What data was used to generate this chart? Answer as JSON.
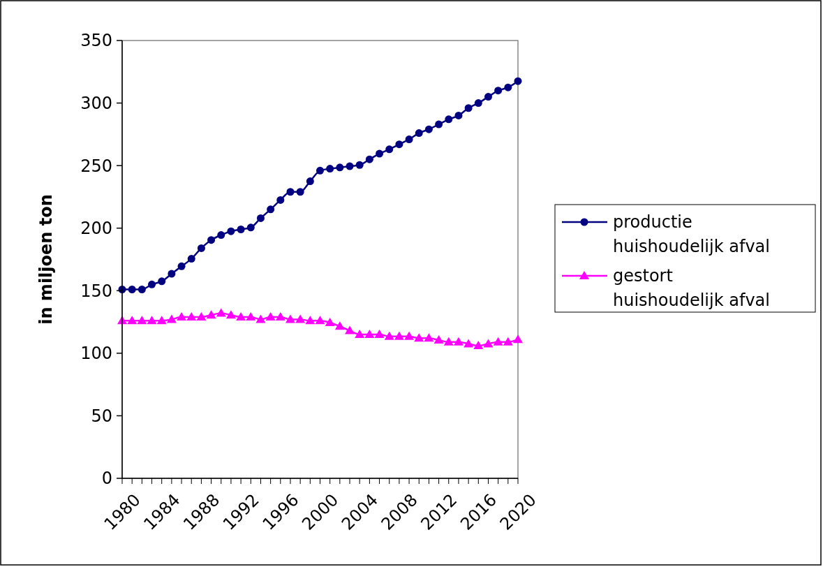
{
  "chart_data": {
    "type": "line",
    "ylabel": "in miljoen ton",
    "categories": [
      "1980",
      null,
      null,
      null,
      "1984",
      null,
      null,
      null,
      "1988",
      null,
      null,
      null,
      "1992",
      null,
      null,
      null,
      "1996",
      null,
      null,
      null,
      "2000",
      null,
      null,
      null,
      "2004",
      null,
      null,
      null,
      "2008",
      null,
      null,
      null,
      "2012",
      null,
      null,
      null,
      "2016",
      null,
      null,
      null,
      "2020"
    ],
    "series": [
      {
        "name": "productie huishoudelijk afval",
        "color": "#000080",
        "marker": "circle",
        "values": [
          151,
          151,
          151,
          155,
          157.5,
          163.5,
          169.5,
          175.5,
          184,
          190.5,
          194.5,
          197.5,
          199,
          200.5,
          208,
          215,
          222.5,
          229,
          229,
          237.5,
          246,
          247.5,
          248.5,
          249.5,
          250.5,
          255,
          259.5,
          263,
          267,
          271,
          276,
          279,
          283,
          287,
          290,
          296,
          300,
          305,
          310,
          312.5,
          317.5
        ]
      },
      {
        "name": "gestort huishoudelijk afval",
        "color": "#ff00ff",
        "marker": "triangle",
        "values": [
          126,
          126,
          126,
          126,
          126,
          127,
          129,
          129,
          129,
          130.5,
          132,
          130.5,
          129,
          129,
          127,
          129,
          129,
          127,
          127,
          126,
          126,
          124.5,
          121.5,
          118,
          115,
          115,
          115,
          113.5,
          113.5,
          113.5,
          112,
          112,
          110.5,
          109,
          109,
          107.5,
          106,
          107.5,
          109,
          109,
          111
        ]
      }
    ],
    "ylim": [
      0,
      350
    ],
    "yticks": [
      0,
      50,
      100,
      150,
      200,
      250,
      300,
      350
    ],
    "grid": false,
    "legend": "right",
    "line_style": "solid"
  }
}
